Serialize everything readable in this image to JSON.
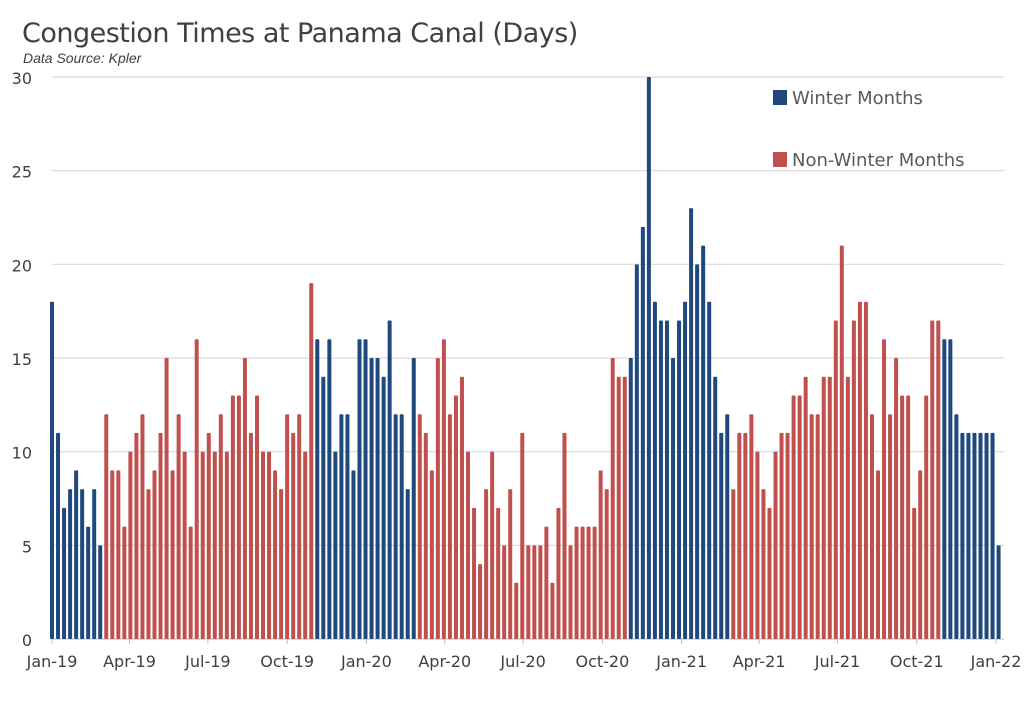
{
  "chart_data": {
    "type": "bar",
    "title": "Congestion Times at Panama Canal (Days)",
    "subtitle": "Data Source: Kpler",
    "xlabel": "",
    "ylabel": "",
    "ylim": [
      0,
      30
    ],
    "y_ticks": [
      "0",
      "5",
      "10",
      "15",
      "20",
      "25",
      "30"
    ],
    "x_range": [
      "2019-01-01",
      "2022-01-01"
    ],
    "x_ticks": [
      {
        "date": "2019-01-01",
        "label": "Jan-19"
      },
      {
        "date": "2019-04-01",
        "label": "Apr-19"
      },
      {
        "date": "2019-07-01",
        "label": "Jul-19"
      },
      {
        "date": "2019-10-01",
        "label": "Oct-19"
      },
      {
        "date": "2020-01-01",
        "label": "Jan-20"
      },
      {
        "date": "2020-04-01",
        "label": "Apr-20"
      },
      {
        "date": "2020-07-01",
        "label": "Jul-20"
      },
      {
        "date": "2020-10-01",
        "label": "Oct-20"
      },
      {
        "date": "2021-01-01",
        "label": "Jan-21"
      },
      {
        "date": "2021-04-01",
        "label": "Apr-21"
      },
      {
        "date": "2021-07-01",
        "label": "Jul-21"
      },
      {
        "date": "2021-10-01",
        "label": "Oct-21"
      },
      {
        "date": "2022-01-01",
        "label": "Jan-22"
      }
    ],
    "grid": "horizontal",
    "legend_placement": "top-right",
    "series": [
      {
        "name": "Winter Months",
        "color": "#1F497D",
        "x": [
          "2019-01-01",
          "2019-01-08",
          "2019-01-15",
          "2019-01-22",
          "2019-01-29",
          "2019-02-05",
          "2019-02-12",
          "2019-02-19",
          "2019-02-26",
          "2019-11-05",
          "2019-11-12",
          "2019-11-19",
          "2019-11-26",
          "2019-12-03",
          "2019-12-10",
          "2019-12-17",
          "2019-12-24",
          "2019-12-31",
          "2020-01-07",
          "2020-01-14",
          "2020-01-21",
          "2020-01-28",
          "2020-02-04",
          "2020-02-11",
          "2020-02-18",
          "2020-02-25",
          "2020-11-03",
          "2020-11-10",
          "2020-11-17",
          "2020-11-24",
          "2020-12-01",
          "2020-12-08",
          "2020-12-15",
          "2020-12-22",
          "2020-12-29",
          "2021-01-05",
          "2021-01-12",
          "2021-01-19",
          "2021-01-26",
          "2021-02-02",
          "2021-02-09",
          "2021-02-16",
          "2021-02-23",
          "2021-11-02",
          "2021-11-09",
          "2021-11-16",
          "2021-11-23",
          "2021-11-30",
          "2021-12-07",
          "2021-12-14",
          "2021-12-21",
          "2021-12-28",
          "2022-01-04"
        ],
        "values": [
          18,
          11,
          7,
          8,
          9,
          8,
          6,
          8,
          5,
          16,
          14,
          16,
          10,
          12,
          12,
          9,
          16,
          16,
          15,
          15,
          14,
          17,
          12,
          12,
          8,
          15,
          15,
          20,
          22,
          30,
          18,
          17,
          17,
          15,
          17,
          18,
          23,
          20,
          21,
          18,
          14,
          11,
          12,
          16,
          16,
          12,
          11,
          11,
          11,
          11,
          11,
          11,
          5
        ]
      },
      {
        "name": "Non-Winter Months",
        "color": "#C0504D",
        "x": [
          "2019-03-05",
          "2019-03-12",
          "2019-03-19",
          "2019-03-26",
          "2019-04-02",
          "2019-04-09",
          "2019-04-16",
          "2019-04-23",
          "2019-04-30",
          "2019-05-07",
          "2019-05-14",
          "2019-05-21",
          "2019-05-28",
          "2019-06-04",
          "2019-06-11",
          "2019-06-18",
          "2019-06-25",
          "2019-07-02",
          "2019-07-09",
          "2019-07-16",
          "2019-07-23",
          "2019-07-30",
          "2019-08-06",
          "2019-08-13",
          "2019-08-20",
          "2019-08-27",
          "2019-09-03",
          "2019-09-10",
          "2019-09-17",
          "2019-09-24",
          "2019-10-01",
          "2019-10-08",
          "2019-10-15",
          "2019-10-22",
          "2019-10-29",
          "2020-03-03",
          "2020-03-10",
          "2020-03-17",
          "2020-03-24",
          "2020-03-31",
          "2020-04-07",
          "2020-04-14",
          "2020-04-21",
          "2020-04-28",
          "2020-05-05",
          "2020-05-12",
          "2020-05-19",
          "2020-05-26",
          "2020-06-02",
          "2020-06-09",
          "2020-06-16",
          "2020-06-23",
          "2020-06-30",
          "2020-07-07",
          "2020-07-14",
          "2020-07-21",
          "2020-07-28",
          "2020-08-04",
          "2020-08-11",
          "2020-08-18",
          "2020-08-25",
          "2020-09-01",
          "2020-09-08",
          "2020-09-15",
          "2020-09-22",
          "2020-09-29",
          "2020-10-06",
          "2020-10-13",
          "2020-10-20",
          "2020-10-27",
          "2021-03-02",
          "2021-03-09",
          "2021-03-16",
          "2021-03-23",
          "2021-03-30",
          "2021-04-06",
          "2021-04-13",
          "2021-04-20",
          "2021-04-27",
          "2021-05-04",
          "2021-05-11",
          "2021-05-18",
          "2021-05-25",
          "2021-06-01",
          "2021-06-08",
          "2021-06-15",
          "2021-06-22",
          "2021-06-29",
          "2021-07-06",
          "2021-07-13",
          "2021-07-20",
          "2021-07-27",
          "2021-08-03",
          "2021-08-10",
          "2021-08-17",
          "2021-08-24",
          "2021-08-31",
          "2021-09-07",
          "2021-09-14",
          "2021-09-21",
          "2021-09-28",
          "2021-10-05",
          "2021-10-12",
          "2021-10-19",
          "2021-10-26"
        ],
        "values": [
          12,
          9,
          9,
          6,
          10,
          11,
          12,
          8,
          9,
          11,
          15,
          9,
          12,
          10,
          6,
          16,
          10,
          11,
          10,
          12,
          10,
          13,
          13,
          15,
          11,
          13,
          10,
          10,
          9,
          8,
          12,
          11,
          12,
          10,
          19,
          12,
          11,
          9,
          15,
          16,
          12,
          13,
          14,
          10,
          7,
          4,
          8,
          10,
          7,
          5,
          8,
          3,
          11,
          5,
          5,
          5,
          6,
          3,
          7,
          11,
          5,
          6,
          6,
          6,
          6,
          9,
          8,
          15,
          14,
          14,
          8,
          11,
          11,
          12,
          10,
          8,
          7,
          10,
          11,
          11,
          13,
          13,
          14,
          12,
          12,
          14,
          14,
          17,
          21,
          14,
          17,
          18,
          18,
          12,
          9,
          16,
          12,
          15,
          13,
          13,
          7,
          9,
          13,
          17,
          17
        ]
      }
    ]
  }
}
